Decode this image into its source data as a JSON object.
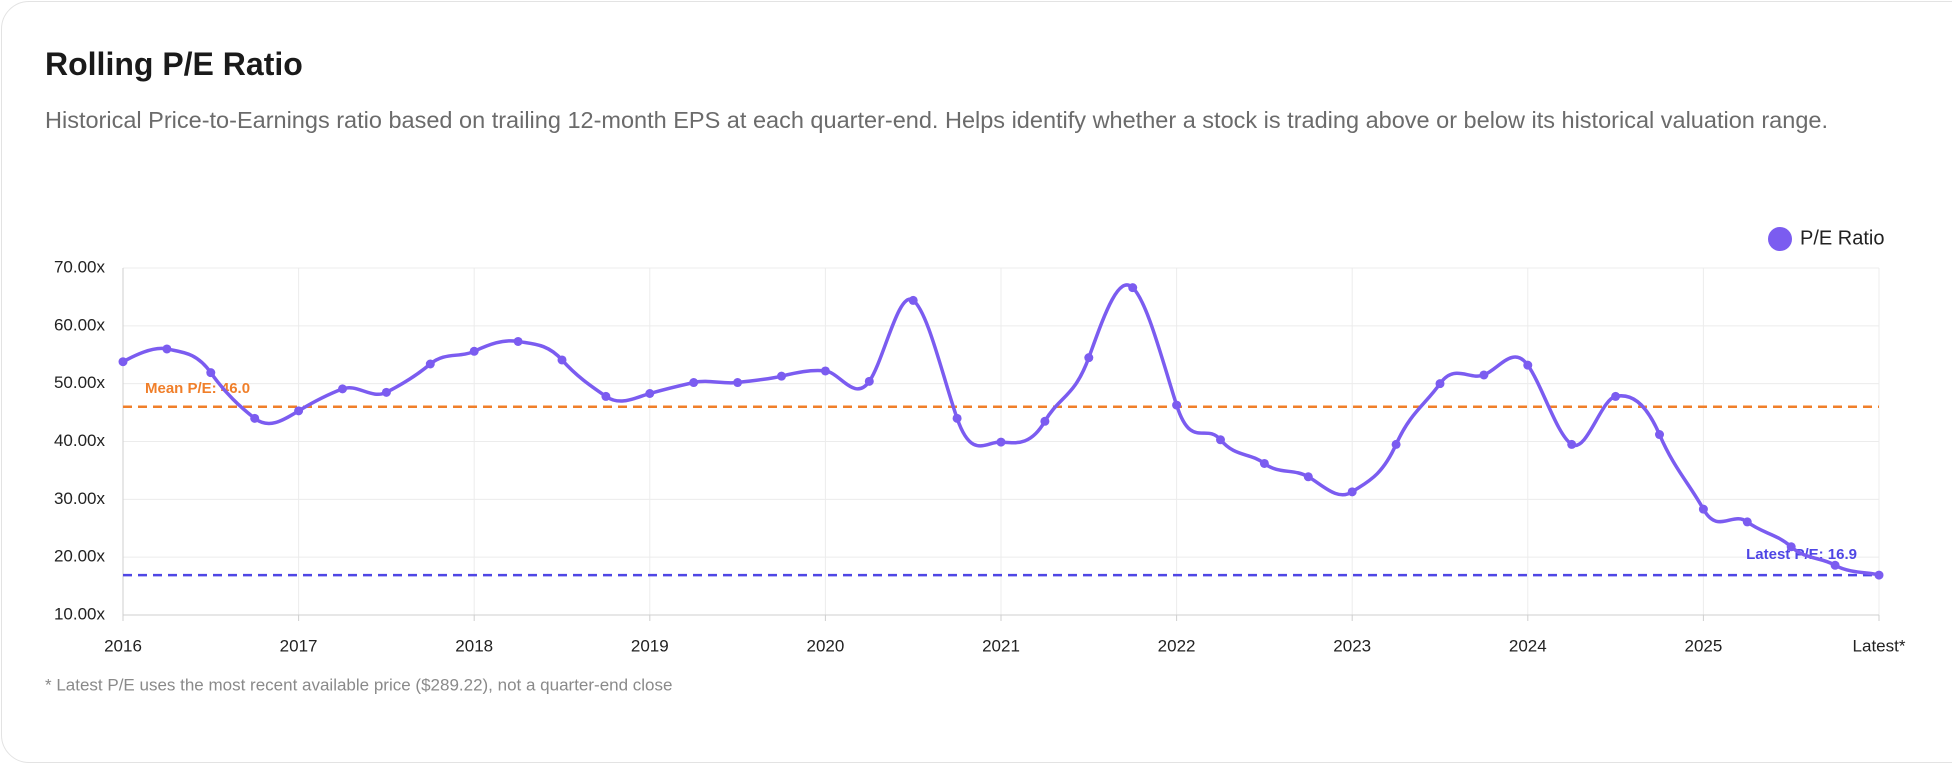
{
  "chart_data": {
    "type": "line",
    "title": "Rolling P/E Ratio",
    "subtitle": "Historical Price-to-Earnings ratio based on trailing 12-month EPS at each quarter-end. Helps identify whether a stock is trading above or below its historical valuation range.",
    "categories": [
      "2016",
      null,
      null,
      null,
      "2017",
      null,
      null,
      null,
      "2018",
      null,
      null,
      null,
      "2019",
      null,
      null,
      null,
      "2020",
      null,
      null,
      null,
      "2021",
      null,
      null,
      null,
      "2022",
      null,
      null,
      null,
      "2023",
      null,
      null,
      null,
      "2024",
      null,
      null,
      null,
      "2025",
      null,
      null,
      null,
      "Latest*"
    ],
    "series": [
      {
        "name": "P/E Ratio",
        "color": "#7b5cf0",
        "values": [
          53.8,
          56.0,
          51.9,
          44.0,
          45.3,
          49.1,
          48.5,
          53.4,
          55.6,
          57.3,
          54.1,
          47.8,
          48.3,
          50.2,
          50.2,
          51.3,
          52.2,
          50.4,
          64.4,
          44.0,
          39.9,
          43.5,
          54.5,
          66.6,
          46.3,
          40.3,
          36.2,
          33.9,
          31.3,
          39.5,
          50.0,
          51.5,
          53.2,
          39.5,
          47.8,
          41.2,
          28.3,
          26.1,
          21.8,
          18.6,
          16.9
        ]
      }
    ],
    "ylim": [
      10,
      70
    ],
    "yticks": [
      {
        "value": 10,
        "label": "10.00x"
      },
      {
        "value": 20,
        "label": "20.00x"
      },
      {
        "value": 30,
        "label": "30.00x"
      },
      {
        "value": 40,
        "label": "40.00x"
      },
      {
        "value": 50,
        "label": "50.00x"
      },
      {
        "value": 60,
        "label": "60.00x"
      },
      {
        "value": 70,
        "label": "70.00x"
      }
    ],
    "grid": true,
    "legend": "top-right",
    "reference_lines": [
      {
        "value": 46.0,
        "label": "Mean P/E: 46.0",
        "color": "#f07f2a"
      },
      {
        "value": 16.9,
        "label": "Latest P/E: 16.9",
        "color": "#4f46e5"
      }
    ],
    "footnote": "* Latest P/E uses the most recent available price ($289.22), not a quarter-end close"
  }
}
